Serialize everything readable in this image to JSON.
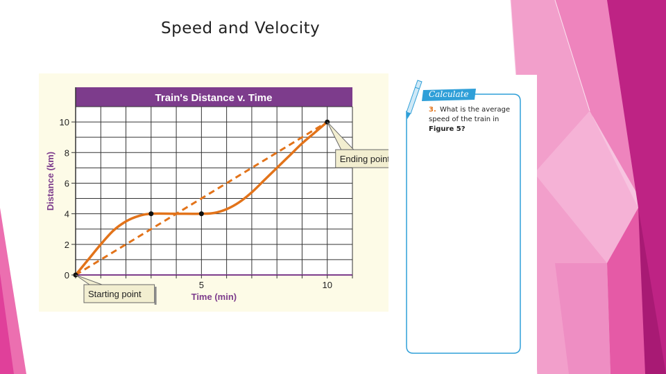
{
  "slide": {
    "title": "Speed and Velocity"
  },
  "chart_data": {
    "type": "line",
    "title": "Train's Distance v. Time",
    "xlabel": "Time (min)",
    "ylabel": "Distance (km)",
    "xlim": [
      0,
      11
    ],
    "ylim": [
      0,
      11
    ],
    "x_ticks": [
      0,
      1,
      2,
      3,
      4,
      5,
      6,
      7,
      8,
      9,
      10,
      11
    ],
    "x_tick_labels": [
      {
        "x": 5,
        "label": "5"
      },
      {
        "x": 10,
        "label": "10"
      }
    ],
    "y_ticks": [
      0,
      2,
      4,
      6,
      8,
      10
    ],
    "y_tick_labels": [
      {
        "y": 0,
        "label": "0"
      },
      {
        "y": 2,
        "label": "2"
      },
      {
        "y": 4,
        "label": "4"
      },
      {
        "y": 6,
        "label": "6"
      },
      {
        "y": 8,
        "label": "8"
      },
      {
        "y": 10,
        "label": "10"
      }
    ],
    "grid": true,
    "series": [
      {
        "style": "solid",
        "color": "#e2731a",
        "x": [
          0,
          0.5,
          1,
          1.5,
          2,
          2.5,
          3,
          4,
          5,
          5.5,
          6,
          6.5,
          7,
          7.5,
          8,
          8.5,
          9,
          9.5,
          10
        ],
        "y": [
          0,
          1.0,
          2.0,
          2.9,
          3.5,
          3.85,
          4,
          4,
          4,
          4.05,
          4.3,
          4.75,
          5.4,
          6.2,
          7.0,
          7.8,
          8.6,
          9.3,
          10
        ]
      },
      {
        "style": "dashed",
        "color": "#e2731a",
        "x": [
          0,
          10
        ],
        "y": [
          0,
          10
        ]
      }
    ],
    "points": [
      {
        "x": 0,
        "y": 0
      },
      {
        "x": 3,
        "y": 4
      },
      {
        "x": 5,
        "y": 4
      },
      {
        "x": 10,
        "y": 10
      }
    ],
    "annotations": [
      {
        "text": "Starting point",
        "x": 0,
        "y": 0,
        "placement": "below-right"
      },
      {
        "text": "Ending point",
        "x": 10,
        "y": 10,
        "placement": "below-right"
      }
    ]
  },
  "calculate": {
    "heading": "Calculate",
    "question_number": "3.",
    "question_text": "What is the average speed of the train in",
    "figure_ref": "Figure 5?"
  },
  "colors": {
    "chart_header": "#7d3c8c",
    "line": "#e2731a",
    "accent_pink": "#e8478f",
    "calc_border": "#2f9fd8"
  }
}
